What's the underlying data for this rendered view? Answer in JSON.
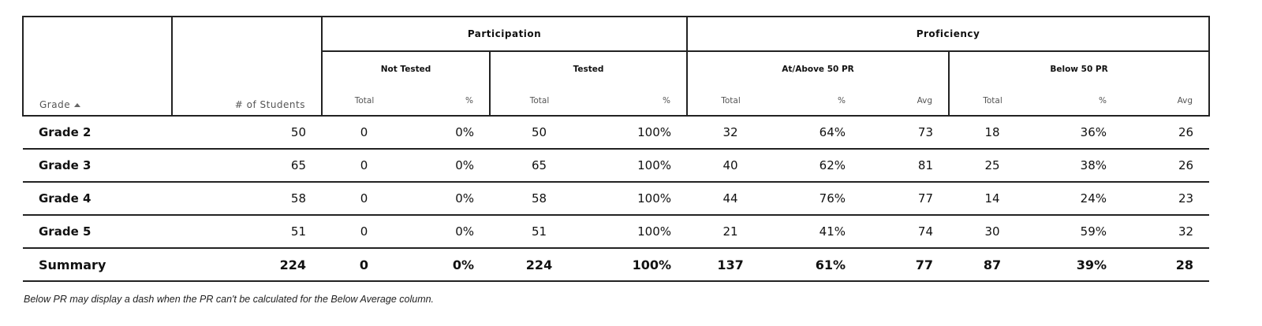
{
  "table": {
    "headers": {
      "grade": "Grade",
      "students": "# of Students",
      "groups": [
        "Participation",
        "Proficiency"
      ],
      "subgroups": [
        "Not Tested",
        "Tested",
        "At/Above 50 PR",
        "Below 50 PR"
      ],
      "columns": [
        "Total",
        "%",
        "Total",
        "%",
        "Total",
        "%",
        "Avg",
        "Total",
        "%",
        "Avg"
      ]
    },
    "rows": [
      [
        "Grade 2",
        "50",
        "0",
        "0%",
        "50",
        "100%",
        "32",
        "64%",
        "73",
        "18",
        "36%",
        "26"
      ],
      [
        "Grade 3",
        "65",
        "0",
        "0%",
        "65",
        "100%",
        "40",
        "62%",
        "81",
        "25",
        "38%",
        "26"
      ],
      [
        "Grade 4",
        "58",
        "0",
        "0%",
        "58",
        "100%",
        "44",
        "76%",
        "77",
        "14",
        "24%",
        "23"
      ],
      [
        "Grade 5",
        "51",
        "0",
        "0%",
        "51",
        "100%",
        "21",
        "41%",
        "74",
        "30",
        "59%",
        "32"
      ]
    ],
    "summary": [
      "Summary",
      "224",
      "0",
      "0%",
      "224",
      "100%",
      "137",
      "61%",
      "77",
      "87",
      "39%",
      "28"
    ]
  },
  "note": "Below PR may display a dash when the PR can't be calculated for the Below Average column."
}
